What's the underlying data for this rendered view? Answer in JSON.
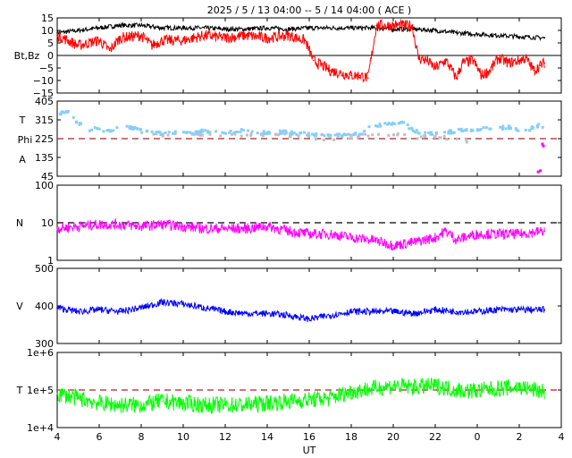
{
  "title": "2025  /  5 / 13    04:00 -- 5 / 14   04:00 ( ACE )",
  "xlabel": "UT",
  "x_ticks": [
    "4",
    "6",
    "8",
    "10",
    "12",
    "14",
    "16",
    "18",
    "20",
    "22",
    "0",
    "2",
    "4"
  ],
  "colors": {
    "bt": "#000000",
    "bz": "#ff0000",
    "theta": "#87cefa",
    "theta_gray": "#c0c0c0",
    "magenta": "#ff00ff",
    "blue": "#0000ff",
    "green": "#00ff00",
    "ref": "#b22222"
  },
  "chart_data": [
    {
      "type": "line",
      "ylabel": "Bt,Bz",
      "ylim": [
        -15,
        15
      ],
      "yticks": [
        "15",
        "10",
        "5",
        "0",
        "−5",
        "−10",
        "−15"
      ],
      "x_range_hours": [
        4,
        28
      ],
      "series": [
        {
          "key": "bt",
          "x": [
            4,
            5,
            6,
            7,
            8,
            9,
            10,
            11,
            12,
            13,
            14,
            15,
            16,
            17,
            18,
            19,
            20,
            21,
            22,
            23,
            24,
            25,
            26,
            27.2
          ],
          "values": [
            9,
            10,
            11,
            12,
            12,
            11,
            11,
            11,
            10.5,
            10.5,
            11,
            10.5,
            11,
            11,
            11,
            11,
            10.5,
            10.5,
            10,
            9,
            8.5,
            8,
            7.5,
            7
          ]
        },
        {
          "key": "bz",
          "x": [
            4,
            4.5,
            5,
            6,
            6.5,
            7,
            8,
            8.5,
            9,
            10,
            11,
            12,
            13,
            14,
            15,
            15.8,
            16.2,
            17,
            17.5,
            18,
            18.4,
            18.8,
            19.2,
            19.6,
            20.5,
            20.9,
            21.2,
            21.6,
            22,
            22.5,
            22.8,
            23,
            23.3,
            23.8,
            24.2,
            24.6,
            25,
            25.5,
            26,
            26.3,
            26.7,
            27,
            27.2
          ],
          "values": [
            8,
            6,
            4,
            6,
            2,
            7,
            8,
            4,
            6,
            6,
            8,
            7,
            8,
            7,
            8,
            6,
            -2,
            -6,
            -7,
            -8,
            -8,
            -9,
            12,
            12,
            12,
            12,
            -1,
            -2,
            -5,
            -2,
            -6,
            -9,
            -3,
            -2,
            -8,
            -6,
            -1,
            -3,
            -2,
            -1,
            -6,
            -4,
            -3
          ]
        }
      ]
    },
    {
      "type": "scatter",
      "ylabel_top": "T",
      "ylabel_mid": "Phi",
      "ylabel_bot": "A",
      "ylim": [
        45,
        405
      ],
      "yticks": [
        "405",
        "315",
        "225",
        "135",
        "45"
      ],
      "reference_line": 225,
      "series": [
        {
          "key": "theta",
          "x": [
            4,
            4.5,
            5,
            5.5,
            6,
            6.5,
            7,
            7.5,
            8,
            8.5,
            9,
            9.5,
            10,
            10.5,
            11,
            11.5,
            12,
            12.5,
            13,
            13.5,
            14,
            14.5,
            15,
            15.5,
            16,
            16.5,
            17,
            17.5,
            18,
            18.5,
            19,
            19.5,
            20,
            20.5,
            21,
            21.5,
            22,
            22.5,
            23,
            23.5,
            24,
            24.5,
            25,
            25.5,
            26,
            26.5,
            27,
            27.2
          ],
          "values": [
            345,
            355,
            300,
            270,
            270,
            265,
            275,
            280,
            262,
            255,
            250,
            256,
            252,
            250,
            262,
            260,
            255,
            256,
            268,
            255,
            255,
            255,
            255,
            250,
            245,
            240,
            238,
            240,
            245,
            244,
            292,
            290,
            300,
            298,
            262,
            252,
            252,
            254,
            262,
            265,
            270,
            275,
            276,
            278,
            262,
            272,
            290,
            280
          ]
        },
        {
          "key": "theta_gray",
          "x": [
            8.5,
            9,
            9.5,
            10,
            15.5,
            16,
            16.5,
            17,
            17.5,
            18,
            18.5,
            20.8,
            21.2,
            21.6,
            22.2,
            22.8,
            23.6
          ],
          "values": [
            240,
            238,
            242,
            240,
            240,
            235,
            225,
            222,
            235,
            232,
            240,
            242,
            230,
            238,
            228,
            232,
            212
          ]
        },
        {
          "key": "phi_outlier",
          "x": [
            26.9,
            27.0,
            27.1,
            27.15
          ],
          "values": [
            65,
            70,
            200,
            190
          ]
        }
      ]
    },
    {
      "type": "line",
      "ylabel": "N",
      "scale": "log",
      "ylim": [
        1,
        100
      ],
      "yticks": [
        "100",
        "10",
        "1"
      ],
      "reference_line": 10,
      "series": [
        {
          "key": "density",
          "x": [
            4,
            5,
            6,
            7,
            8,
            9,
            10,
            11,
            12,
            13,
            14,
            15,
            16,
            17,
            18,
            19,
            20,
            21,
            22,
            22.5,
            23,
            24,
            25,
            26,
            27.2
          ],
          "values": [
            7,
            8,
            9,
            9,
            8,
            9,
            8,
            7,
            7,
            7,
            8,
            6,
            5,
            5,
            4,
            3.5,
            2.5,
            3,
            4,
            6,
            3.5,
            5,
            5,
            5,
            6
          ]
        }
      ]
    },
    {
      "type": "line",
      "ylabel": "V",
      "ylim": [
        300,
        500
      ],
      "yticks": [
        "500",
        "400",
        "300"
      ],
      "series": [
        {
          "key": "speed",
          "x": [
            4,
            5,
            6,
            7,
            8,
            9,
            10,
            11,
            12,
            13,
            14,
            15,
            16,
            17,
            18,
            19,
            20,
            21,
            22,
            23,
            24,
            25,
            26,
            27.2
          ],
          "values": [
            395,
            385,
            390,
            385,
            395,
            410,
            405,
            395,
            385,
            380,
            380,
            375,
            365,
            375,
            385,
            385,
            385,
            380,
            390,
            385,
            385,
            390,
            390,
            390
          ]
        }
      ]
    },
    {
      "type": "line",
      "ylabel": "T",
      "scale": "log",
      "ylim": [
        10000,
        1000000
      ],
      "yticks": [
        "1e+6",
        "1e+5",
        "1e+4"
      ],
      "reference_line": 100000,
      "series": [
        {
          "key": "temperature",
          "x": [
            4,
            5,
            6,
            7,
            8,
            9,
            10,
            11,
            12,
            13,
            14,
            15,
            16,
            17,
            18,
            19,
            20,
            21,
            22,
            23,
            24,
            25,
            26,
            27.2
          ],
          "values": [
            80000,
            60000,
            45000,
            40000,
            40000,
            50000,
            45000,
            40000,
            40000,
            40000,
            45000,
            50000,
            55000,
            60000,
            90000,
            110000,
            130000,
            120000,
            130000,
            100000,
            95000,
            110000,
            120000,
            90000
          ]
        }
      ]
    }
  ]
}
